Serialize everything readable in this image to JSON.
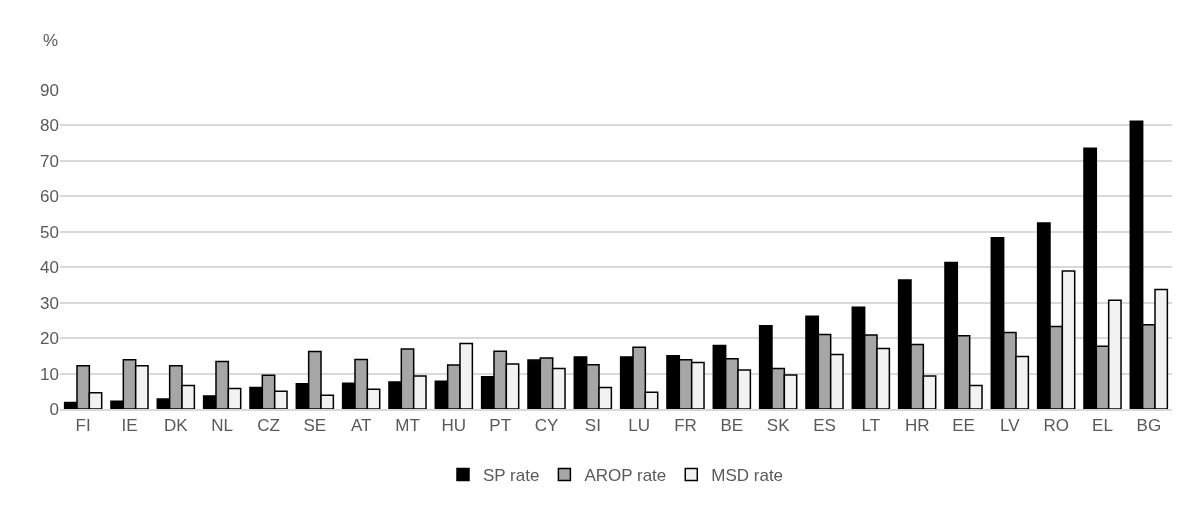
{
  "chart_data": {
    "type": "bar",
    "ylabel": "%",
    "categories": [
      "FI",
      "IE",
      "DK",
      "NL",
      "CZ",
      "SE",
      "AT",
      "MT",
      "HU",
      "PT",
      "CY",
      "SI",
      "LU",
      "FR",
      "BE",
      "SK",
      "ES",
      "LT",
      "HR",
      "EE",
      "LV",
      "RO",
      "EL",
      "BG"
    ],
    "series": [
      {
        "name": "SP rate",
        "color": "#000000",
        "values": [
          1.8,
          2.2,
          2.8,
          3.7,
          6.1,
          7.1,
          7.3,
          7.6,
          7.8,
          9.1,
          13.8,
          14.7,
          14.7,
          15.0,
          17.9,
          23.5,
          26.2,
          28.7,
          36.4,
          41.3,
          48.3,
          52.5,
          73.6,
          81.2
        ]
      },
      {
        "name": "AROP rate",
        "color": "#a6a6a6",
        "values": [
          12.2,
          13.9,
          12.2,
          13.4,
          9.5,
          16.2,
          14.0,
          16.9,
          12.4,
          16.3,
          14.4,
          12.5,
          17.4,
          13.9,
          14.2,
          11.4,
          21.0,
          20.9,
          18.2,
          20.7,
          21.6,
          23.3,
          17.7,
          23.8
        ]
      },
      {
        "name": "MSD rate",
        "color": "#f2f2f2",
        "values": [
          4.6,
          12.2,
          6.6,
          5.8,
          5.0,
          3.9,
          5.6,
          9.3,
          18.5,
          12.7,
          11.4,
          6.1,
          4.7,
          13.1,
          11.0,
          9.6,
          15.4,
          17.1,
          9.3,
          6.6,
          14.8,
          38.9,
          30.7,
          33.7
        ]
      }
    ],
    "ylim": [
      0,
      90
    ],
    "yticks": [
      0,
      10,
      20,
      30,
      40,
      50,
      60,
      70,
      80,
      90
    ],
    "grid": "y",
    "legend": "bottom"
  }
}
